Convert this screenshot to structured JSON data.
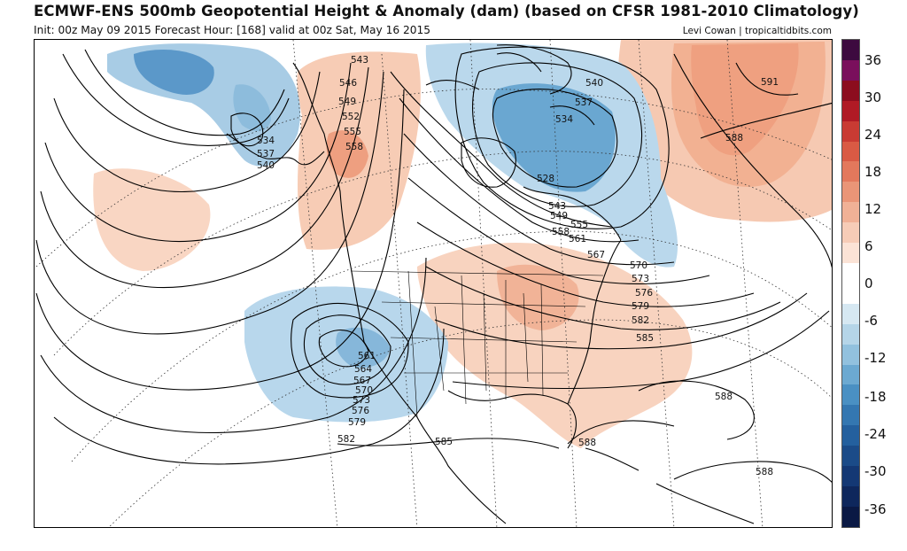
{
  "header": {
    "title": "ECMWF-ENS 500mb Geopotential Height & Anomaly (dam) (based on CFSR 1981-2010 Climatology)",
    "subtitle": "Init: 00z May 09 2015   Forecast Hour: [168]   valid at 00z Sat, May 16 2015",
    "credit": "Levi Cowan | tropicaltidbits.com"
  },
  "colorbar": {
    "labels": [
      "36",
      "30",
      "24",
      "18",
      "12",
      "6",
      "0",
      "-6",
      "-12",
      "-18",
      "-24",
      "-30",
      "-36"
    ],
    "colors": [
      "#3d0a3f",
      "#7a0f5c",
      "#8c0d1e",
      "#b01a25",
      "#c93b33",
      "#d95a44",
      "#e3785c",
      "#ea9577",
      "#f0b196",
      "#f6ccb7",
      "#fbe3d6",
      "#ffffff",
      "#ffffff",
      "#d6e8f2",
      "#b5d5e8",
      "#92c1de",
      "#6ca9d1",
      "#4a90c3",
      "#3477b1",
      "#24609e",
      "#1b4b88",
      "#143874",
      "#0e275c",
      "#0a1944"
    ]
  },
  "contour_labels": [
    "534",
    "537",
    "540",
    "543",
    "546",
    "549",
    "552",
    "555",
    "558",
    "528",
    "534",
    "537",
    "540",
    "543",
    "549",
    "555",
    "558",
    "561",
    "567",
    "570",
    "573",
    "576",
    "579",
    "582",
    "585",
    "561",
    "564",
    "567",
    "570",
    "573",
    "576",
    "579",
    "582",
    "585",
    "588",
    "588",
    "588",
    "588",
    "591"
  ],
  "map_colors": {
    "warm_light": "#f8d3bf",
    "warm_mid": "#f2b49a",
    "warm_strong": "#e2785e",
    "cool_light": "#c7dff0",
    "cool_mid": "#8dbcdc",
    "cool_strong": "#4f8fc2"
  }
}
